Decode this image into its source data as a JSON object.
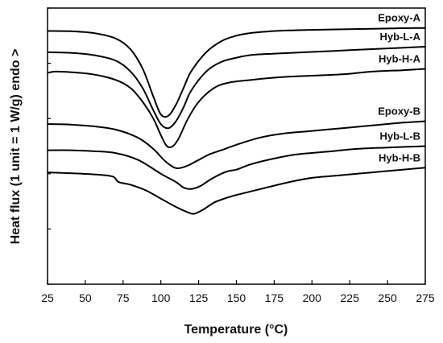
{
  "chart_data": {
    "type": "line",
    "title": "",
    "xlabel": "Temperature (°C)",
    "ylabel": "Heat flux (1 unit = 1 W/g) endo >",
    "xlim": [
      25,
      275
    ],
    "ylim": [
      0,
      10
    ],
    "x_ticks": [
      25,
      50,
      75,
      100,
      125,
      150,
      175,
      200,
      225,
      250,
      275
    ],
    "y_ticks": [
      0,
      2,
      4,
      6,
      8,
      10
    ],
    "grid": false,
    "legend": "none",
    "series": [
      {
        "name": "Epoxy-A",
        "x": [
          25,
          40,
          55,
          70,
          80,
          88,
          95,
          100,
          105,
          110,
          115,
          120,
          130,
          140,
          150,
          160,
          170,
          185,
          200,
          220,
          240,
          260,
          275
        ],
        "y": [
          9.17,
          9.16,
          9.1,
          8.9,
          8.5,
          7.8,
          6.8,
          6.15,
          6.1,
          6.5,
          7.1,
          7.7,
          8.4,
          8.8,
          9.0,
          9.1,
          9.15,
          9.19,
          9.21,
          9.23,
          9.25,
          9.27,
          9.28
        ]
      },
      {
        "name": "Hyb-L-A",
        "x": [
          25,
          40,
          55,
          70,
          80,
          88,
          95,
          100,
          105,
          110,
          115,
          120,
          130,
          140,
          150,
          160,
          175,
          195,
          215,
          235,
          255,
          275
        ],
        "y": [
          8.4,
          8.38,
          8.3,
          8.1,
          7.7,
          7.1,
          6.3,
          5.8,
          5.65,
          5.9,
          6.4,
          7.0,
          7.7,
          8.05,
          8.2,
          8.3,
          8.35,
          8.4,
          8.45,
          8.5,
          8.55,
          8.6
        ]
      },
      {
        "name": "Hyb-H-A",
        "x": [
          25,
          30,
          40,
          55,
          70,
          80,
          88,
          95,
          100,
          104,
          108,
          112,
          118,
          125,
          135,
          145,
          160,
          180,
          200,
          220,
          240,
          260,
          275
        ],
        "y": [
          7.65,
          7.7,
          7.68,
          7.6,
          7.4,
          7.1,
          6.6,
          6.0,
          5.4,
          5.0,
          5.0,
          5.3,
          6.0,
          6.6,
          7.1,
          7.3,
          7.4,
          7.5,
          7.55,
          7.6,
          7.7,
          7.75,
          7.8
        ]
      },
      {
        "name": "Epoxy-B",
        "x": [
          25,
          40,
          55,
          70,
          85,
          95,
          102,
          108,
          112,
          118,
          125,
          132,
          140,
          150,
          165,
          180,
          200,
          220,
          240,
          260,
          275
        ],
        "y": [
          5.8,
          5.78,
          5.72,
          5.6,
          5.3,
          4.9,
          4.5,
          4.25,
          4.2,
          4.3,
          4.5,
          4.7,
          4.85,
          5.05,
          5.3,
          5.45,
          5.55,
          5.65,
          5.75,
          5.85,
          5.9
        ]
      },
      {
        "name": "Hyb-L-B",
        "x": [
          25,
          40,
          55,
          70,
          85,
          100,
          110,
          115,
          120,
          126,
          133,
          140,
          145,
          150,
          160,
          175,
          190,
          210,
          230,
          250,
          275
        ],
        "y": [
          4.85,
          4.85,
          4.82,
          4.75,
          4.5,
          4.0,
          3.7,
          3.5,
          3.45,
          3.55,
          3.8,
          4.0,
          4.1,
          4.15,
          4.35,
          4.55,
          4.7,
          4.8,
          4.9,
          4.95,
          5.0
        ]
      },
      {
        "name": "Hyb-H-B",
        "x": [
          25,
          40,
          55,
          68,
          72,
          80,
          90,
          100,
          110,
          118,
          122,
          128,
          135,
          142,
          148,
          155,
          170,
          185,
          200,
          220,
          240,
          260,
          275
        ],
        "y": [
          4.05,
          4.02,
          3.98,
          3.9,
          3.7,
          3.6,
          3.4,
          3.1,
          2.8,
          2.6,
          2.55,
          2.7,
          2.95,
          3.1,
          3.2,
          3.3,
          3.5,
          3.7,
          3.85,
          3.95,
          4.05,
          4.15,
          4.22
        ]
      }
    ]
  }
}
